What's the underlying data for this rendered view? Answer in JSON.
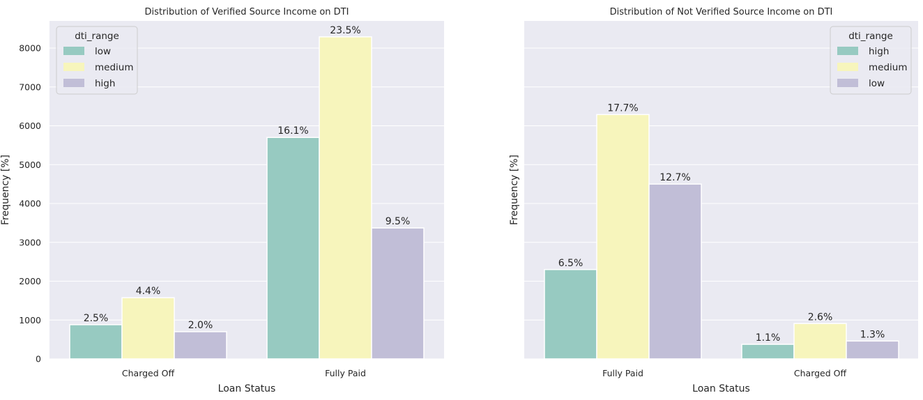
{
  "chart_data": [
    {
      "type": "bar",
      "title": "Distribution of Verified Source Income on DTI",
      "xlabel": "Loan Status",
      "ylabel": "Frequency [%]",
      "categories": [
        "Charged Off",
        "Fully Paid"
      ],
      "ylim": [
        0,
        8700
      ],
      "yticks": [
        0,
        1000,
        2000,
        3000,
        4000,
        5000,
        6000,
        7000,
        8000
      ],
      "ytick_labels": [
        "0",
        "1000",
        "2000",
        "3000",
        "4000",
        "5000",
        "6000",
        "7000",
        "8000"
      ],
      "grid": true,
      "legend": {
        "title": "dti_range",
        "placement": "top-left",
        "entries": [
          "low",
          "medium",
          "high"
        ]
      },
      "series": [
        {
          "name": "low",
          "color": "#97cac1",
          "values": [
            880,
            5700
          ],
          "labels": [
            "2.5%",
            "16.1%"
          ]
        },
        {
          "name": "medium",
          "color": "#f7f5bc",
          "values": [
            1575,
            8290
          ],
          "labels": [
            "4.4%",
            "23.5%"
          ]
        },
        {
          "name": "high",
          "color": "#c1bed7",
          "values": [
            700,
            3370
          ],
          "labels": [
            "2.0%",
            "9.5%"
          ]
        }
      ]
    },
    {
      "type": "bar",
      "title": "Distribution of Not Verified Source Income on DTI",
      "xlabel": "Loan Status",
      "ylabel": "Frequency [%]",
      "categories": [
        "Fully Paid",
        "Charged Off"
      ],
      "ylim": [
        0,
        8700
      ],
      "yticks": [
        0,
        1000,
        2000,
        3000,
        4000,
        5000,
        6000,
        7000,
        8000
      ],
      "ytick_labels": [],
      "grid": true,
      "legend": {
        "title": "dti_range",
        "placement": "top-right",
        "entries": [
          "high",
          "medium",
          "low"
        ]
      },
      "series": [
        {
          "name": "high",
          "color": "#97cac1",
          "values": [
            2300,
            375
          ],
          "labels": [
            "6.5%",
            "1.1%"
          ]
        },
        {
          "name": "medium",
          "color": "#f7f5bc",
          "values": [
            6290,
            910
          ],
          "labels": [
            "17.7%",
            "2.6%"
          ]
        },
        {
          "name": "low",
          "color": "#c1bed7",
          "values": [
            4500,
            460
          ],
          "labels": [
            "12.7%",
            "1.3%"
          ]
        }
      ]
    }
  ]
}
